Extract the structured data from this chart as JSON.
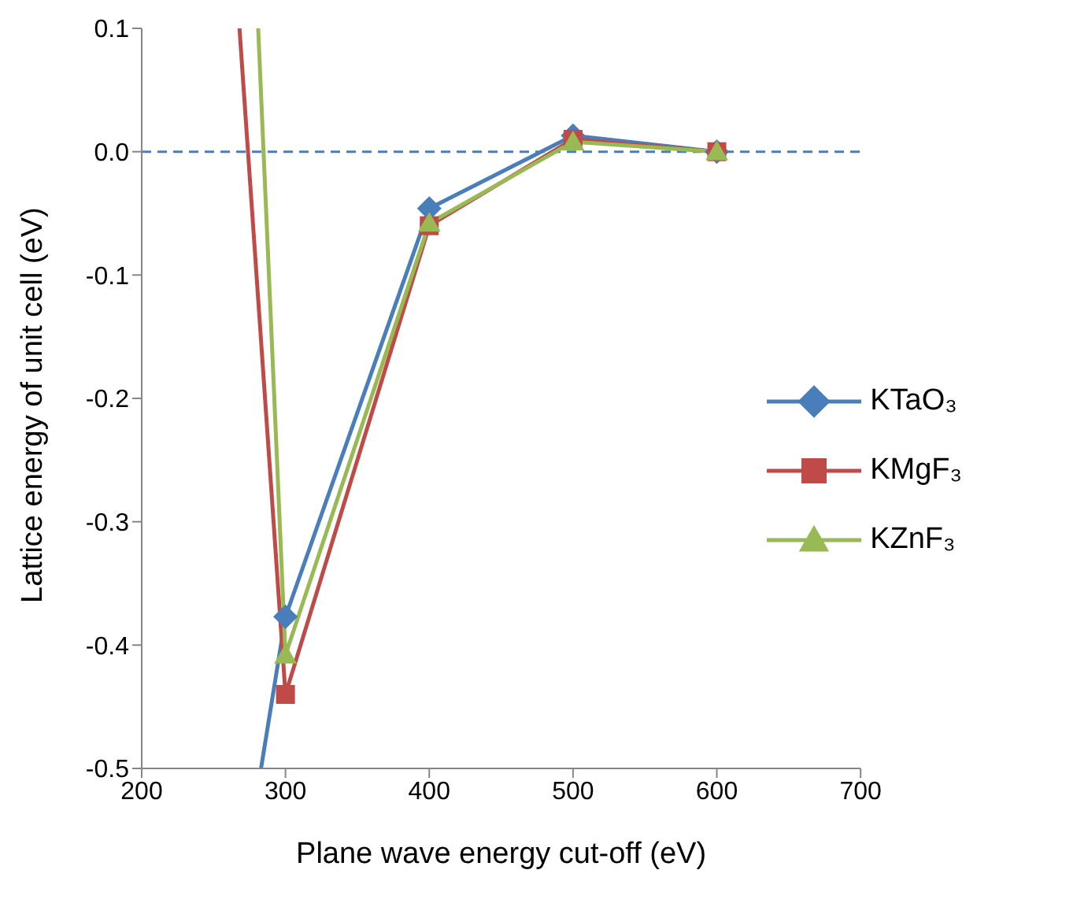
{
  "chart_data": {
    "type": "line",
    "xlabel": "Plane wave energy cut-off (eV)",
    "ylabel": "Lattice energy of unit cell (eV)",
    "xlim": [
      200,
      700
    ],
    "xticks": [
      200,
      300,
      400,
      500,
      600,
      700
    ],
    "ylim": [
      -0.5,
      0.1
    ],
    "yticks": [
      {
        "value": -0.5,
        "label": "-0.5"
      },
      {
        "value": -0.4,
        "label": "-0.4"
      },
      {
        "value": -0.3,
        "label": "-0.3"
      },
      {
        "value": -0.2,
        "label": "-0.2"
      },
      {
        "value": -0.1,
        "label": "-0.1"
      },
      {
        "value": 0,
        "label": "0.0"
      },
      {
        "value": 0.1,
        "label": "0.1"
      }
    ],
    "grid": false,
    "legend": "right",
    "ref_lines": [
      {
        "axis": "y",
        "value": 0,
        "color": "#4a7ebb",
        "line_style": "dashed"
      }
    ],
    "series": [
      {
        "name": "KTaO₃",
        "color": "#4a7ebb",
        "marker": "diamond",
        "x": [
          283,
          300,
          400,
          500,
          600
        ],
        "values": [
          -0.5,
          -0.377,
          -0.046,
          0.013,
          0
        ]
      },
      {
        "name": "KMgF₃",
        "color": "#be4b48",
        "marker": "square",
        "x": [
          268,
          300,
          400,
          500,
          600
        ],
        "values": [
          0.1,
          -0.44,
          -0.06,
          0.01,
          0
        ]
      },
      {
        "name": "KZnF₃",
        "color": "#98b954",
        "marker": "triangle",
        "x": [
          281,
          300,
          400,
          500,
          600
        ],
        "values": [
          0.1,
          -0.408,
          -0.058,
          0.008,
          0
        ]
      }
    ]
  }
}
